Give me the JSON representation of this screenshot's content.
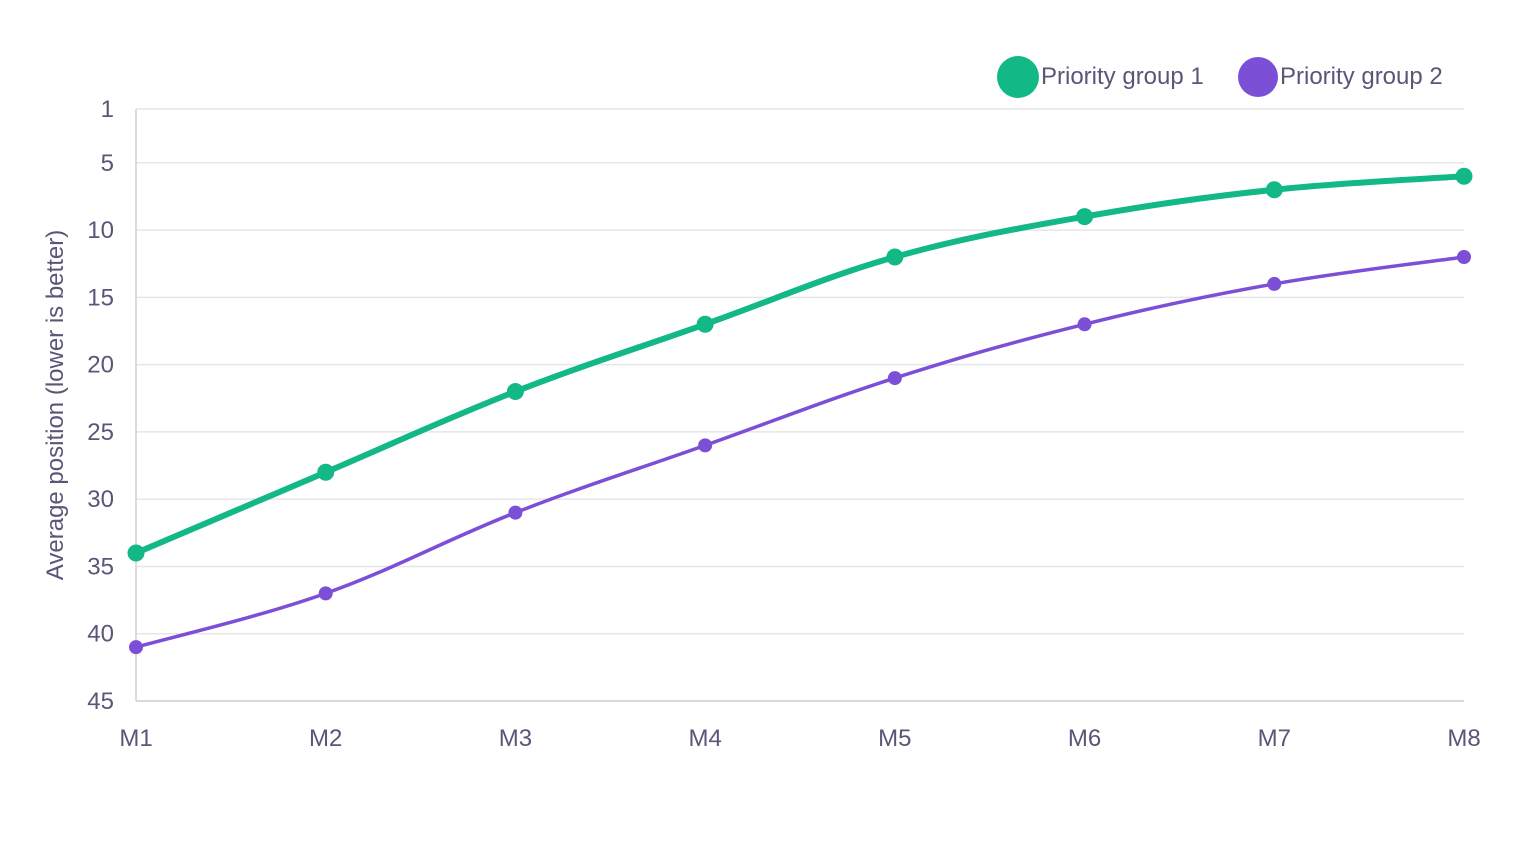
{
  "chart_data": {
    "type": "line",
    "title": "",
    "xlabel": "",
    "ylabel": "Average position (lower is better)",
    "categories": [
      "M1",
      "M2",
      "M3",
      "M4",
      "M5",
      "M6",
      "M7",
      "M8"
    ],
    "y_ticks": [
      1,
      5,
      10,
      15,
      20,
      25,
      30,
      35,
      40,
      45
    ],
    "ylim": [
      1,
      45
    ],
    "y_inverted": true,
    "grid": "horizontal",
    "legend_position": "top-right",
    "smooth": true,
    "series": [
      {
        "name": "Priority group 1",
        "color": "#13b887",
        "values": [
          34,
          28,
          22,
          17,
          12,
          9,
          7,
          6
        ]
      },
      {
        "name": "Priority group 2",
        "color": "#7b4fd6",
        "values": [
          41,
          37,
          31,
          26,
          21,
          17,
          14,
          12
        ]
      }
    ]
  },
  "colors": {
    "text": "#5d5478",
    "grid": "#e6e6ea",
    "axis": "#cfcfd6"
  }
}
